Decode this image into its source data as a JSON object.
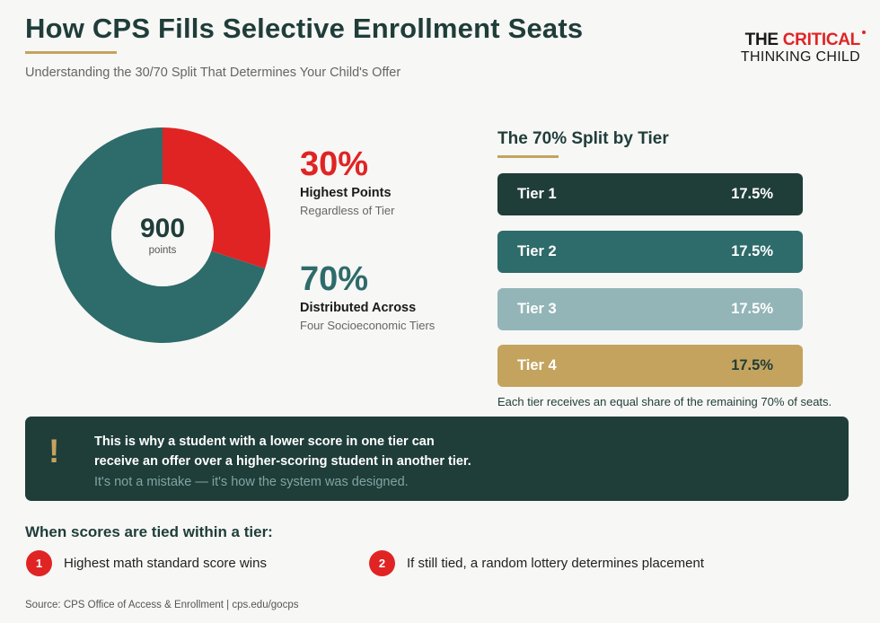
{
  "header": {
    "title": "How CPS Fills Selective Enrollment Seats",
    "subtitle": "Understanding the 30/70 Split That Determines Your Child's Offer"
  },
  "brand": {
    "line1_dark": "THE ",
    "line1_red": "CRITICAL",
    "line2": "THINKING CHILD"
  },
  "donut": {
    "center_value": "900",
    "center_unit": "points",
    "segments": [
      {
        "label": "Highest Points",
        "percent": 30,
        "color": "#e02424"
      },
      {
        "label": "Distributed Across",
        "percent": 70,
        "color": "#2e6b6b"
      }
    ]
  },
  "stats": [
    {
      "pct": "30%",
      "label": "Highest Points",
      "sub": "Regardless of Tier"
    },
    {
      "pct": "70%",
      "label": "Distributed Across",
      "sub": "Four Socioeconomic Tiers"
    }
  ],
  "tiers": {
    "heading": "The 70% Split by Tier",
    "items": [
      {
        "name": "Tier 1",
        "value": "17.5%"
      },
      {
        "name": "Tier 2",
        "value": "17.5%"
      },
      {
        "name": "Tier 3",
        "value": "17.5%"
      },
      {
        "name": "Tier 4",
        "value": "17.5%"
      }
    ],
    "note": "Each tier receives an equal share of the remaining 70% of seats."
  },
  "callout": {
    "icon": "!",
    "line1": "This is why a student with a lower score in one tier can",
    "line2": "receive an offer over a higher-scoring student in another tier.",
    "sub": "It's not a mistake — it's how the system was designed."
  },
  "tiebreak": {
    "heading": "When scores are tied within a tier:",
    "rules": [
      {
        "num": "1",
        "text": "Highest math standard score wins"
      },
      {
        "num": "2",
        "text": "If still tied, a random lottery determines placement"
      }
    ]
  },
  "footer": {
    "source": "Source: CPS Office of Access & Enrollment  |  cps.edu/gocps"
  },
  "colors": {
    "accent_gold": "#c4a35e",
    "brand_red": "#e02424",
    "dark_teal": "#1f3d39",
    "teal": "#2e6b6b",
    "light_teal": "#93b5b7"
  }
}
